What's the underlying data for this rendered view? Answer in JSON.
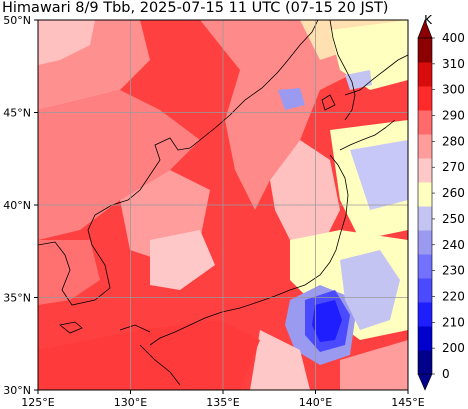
{
  "title": "Himawari 8/9 Tbb, 2025-07-15 11 UTC (07-15 20 JST)",
  "map": {
    "lat_ticks": [
      "50°N",
      "45°N",
      "40°N",
      "35°N",
      "30°N"
    ],
    "lon_ticks": [
      "125°E",
      "130°E",
      "135°E",
      "140°E",
      "145°E"
    ],
    "extent": {
      "lon": [
        125,
        145
      ],
      "lat": [
        30,
        50
      ]
    },
    "field": "brightness temperature"
  },
  "colorbar": {
    "unit": "K",
    "ticks": [
      "400",
      "310",
      "300",
      "290",
      "280",
      "270",
      "260",
      "250",
      "240",
      "230",
      "220",
      "210",
      "200",
      "0"
    ],
    "colors": [
      "#00008b",
      "#0000cd",
      "#1e1eff",
      "#4a4aff",
      "#7272ff",
      "#9a9af0",
      "#c4c4f2",
      "#ffffc0",
      "#ffc8c8",
      "#ff9c9c",
      "#ff6a6a",
      "#ff2a2a",
      "#d80c0c",
      "#8b0000"
    ]
  }
}
